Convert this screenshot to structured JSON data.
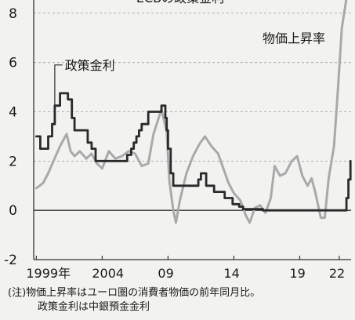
{
  "chart_data": {
    "type": "line",
    "title": "ECBの政策金利",
    "xlim": [
      1998.8,
      2022.9
    ],
    "ylim": [
      -2,
      8.6
    ],
    "yticks": [
      -2,
      0,
      2,
      4,
      6,
      8
    ],
    "xticks": [
      {
        "value": 1999,
        "label": "1999年"
      },
      {
        "value": 2004,
        "label": "2004"
      },
      {
        "value": 2009,
        "label": "09"
      },
      {
        "value": 2014,
        "label": "14"
      },
      {
        "value": 2019,
        "label": "19"
      },
      {
        "value": 2022,
        "label": "22"
      }
    ],
    "grid": true,
    "series": [
      {
        "name": "政策金利",
        "color": "#2a2a2a",
        "step": true,
        "points": [
          [
            1999.0,
            3.0
          ],
          [
            1999.3,
            2.5
          ],
          [
            1999.9,
            3.0
          ],
          [
            2000.2,
            3.5
          ],
          [
            2000.4,
            4.25
          ],
          [
            2000.8,
            4.75
          ],
          [
            2001.4,
            4.5
          ],
          [
            2001.7,
            3.75
          ],
          [
            2001.9,
            3.25
          ],
          [
            2002.9,
            2.75
          ],
          [
            2003.2,
            2.5
          ],
          [
            2003.5,
            2.0
          ],
          [
            2005.9,
            2.25
          ],
          [
            2006.2,
            2.5
          ],
          [
            2006.4,
            2.75
          ],
          [
            2006.6,
            3.0
          ],
          [
            2006.8,
            3.25
          ],
          [
            2007.0,
            3.5
          ],
          [
            2007.5,
            4.0
          ],
          [
            2008.5,
            4.25
          ],
          [
            2008.8,
            3.75
          ],
          [
            2008.9,
            3.25
          ],
          [
            2009.0,
            2.5
          ],
          [
            2009.2,
            1.5
          ],
          [
            2009.4,
            1.0
          ],
          [
            2011.3,
            1.25
          ],
          [
            2011.5,
            1.5
          ],
          [
            2011.9,
            1.0
          ],
          [
            2012.5,
            0.75
          ],
          [
            2013.3,
            0.5
          ],
          [
            2013.9,
            0.25
          ],
          [
            2014.4,
            0.15
          ],
          [
            2014.7,
            0.05
          ],
          [
            2016.2,
            0.0
          ],
          [
            2022.55,
            0.5
          ],
          [
            2022.7,
            1.25
          ],
          [
            2022.85,
            2.0
          ]
        ]
      },
      {
        "name": "物価上昇率",
        "color": "#a9a9a9",
        "step": false,
        "points": [
          [
            1999.0,
            0.9
          ],
          [
            1999.5,
            1.1
          ],
          [
            1999.9,
            1.5
          ],
          [
            2000.3,
            2.0
          ],
          [
            2000.8,
            2.6
          ],
          [
            2001.3,
            3.1
          ],
          [
            2001.6,
            2.4
          ],
          [
            2001.9,
            2.2
          ],
          [
            2002.3,
            2.4
          ],
          [
            2002.8,
            2.1
          ],
          [
            2003.2,
            2.3
          ],
          [
            2003.6,
            1.9
          ],
          [
            2004.0,
            1.7
          ],
          [
            2004.5,
            2.4
          ],
          [
            2005.0,
            2.1
          ],
          [
            2005.5,
            2.2
          ],
          [
            2006.0,
            2.4
          ],
          [
            2006.5,
            2.3
          ],
          [
            2007.0,
            1.8
          ],
          [
            2007.5,
            1.9
          ],
          [
            2007.9,
            3.1
          ],
          [
            2008.5,
            4.1
          ],
          [
            2008.9,
            3.2
          ],
          [
            2009.1,
            1.2
          ],
          [
            2009.4,
            0.0
          ],
          [
            2009.6,
            -0.5
          ],
          [
            2009.9,
            0.4
          ],
          [
            2010.4,
            1.5
          ],
          [
            2010.9,
            2.2
          ],
          [
            2011.4,
            2.7
          ],
          [
            2011.8,
            3.0
          ],
          [
            2012.3,
            2.6
          ],
          [
            2012.8,
            2.3
          ],
          [
            2013.2,
            1.7
          ],
          [
            2013.6,
            1.1
          ],
          [
            2014.0,
            0.7
          ],
          [
            2014.5,
            0.4
          ],
          [
            2014.9,
            -0.2
          ],
          [
            2015.2,
            -0.5
          ],
          [
            2015.6,
            0.1
          ],
          [
            2016.0,
            0.2
          ],
          [
            2016.4,
            -0.1
          ],
          [
            2016.8,
            0.5
          ],
          [
            2017.1,
            1.8
          ],
          [
            2017.5,
            1.4
          ],
          [
            2017.9,
            1.5
          ],
          [
            2018.4,
            2.0
          ],
          [
            2018.8,
            2.2
          ],
          [
            2019.2,
            1.4
          ],
          [
            2019.6,
            1.0
          ],
          [
            2019.9,
            1.3
          ],
          [
            2020.2,
            0.7
          ],
          [
            2020.6,
            -0.3
          ],
          [
            2020.9,
            -0.3
          ],
          [
            2021.2,
            1.3
          ],
          [
            2021.6,
            2.6
          ],
          [
            2021.9,
            4.9
          ],
          [
            2022.2,
            7.4
          ],
          [
            2022.55,
            8.6
          ]
        ]
      }
    ],
    "annotations": [
      {
        "text": "政策金利",
        "series": "政策金利"
      },
      {
        "text": "物価上昇率",
        "series": "物価上昇率"
      }
    ],
    "notes": [
      "(注)物価上昇率はユーロ圏の消費者物価の前年同月比。",
      "政策金利は中銀預金金利"
    ]
  }
}
